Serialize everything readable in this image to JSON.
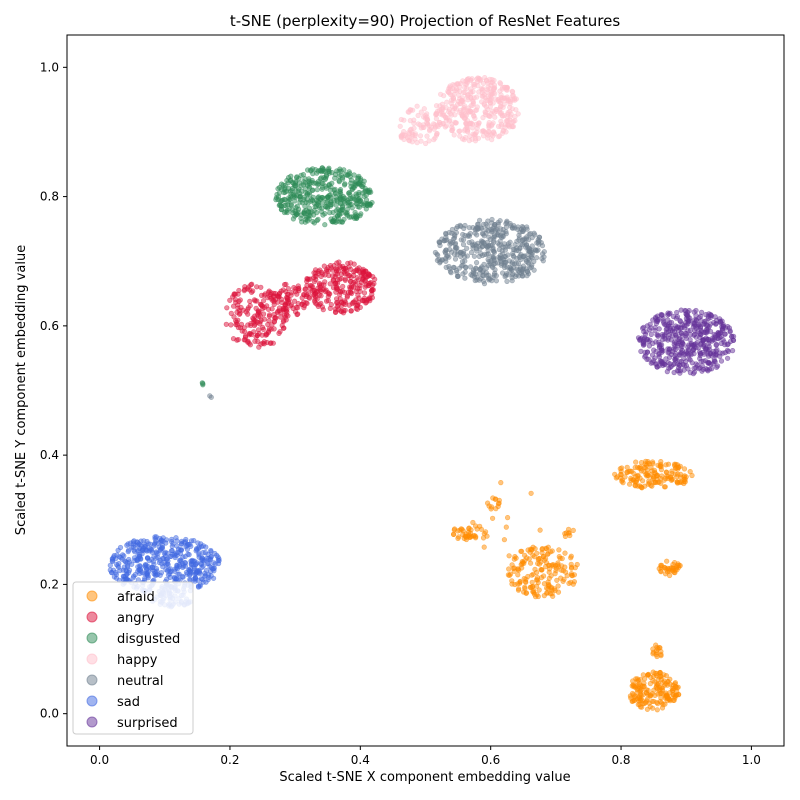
{
  "chart_data": {
    "type": "scatter",
    "title": "t-SNE (perplexity=90) Projection of ResNet Features",
    "xlabel": "Scaled t-SNE X component embedding value",
    "ylabel": "Scaled t-SNE Y component embedding value",
    "xlim": [
      -0.05,
      1.05
    ],
    "ylim": [
      -0.05,
      1.05
    ],
    "xticks": [
      "0.0",
      "0.2",
      "0.4",
      "0.6",
      "0.8",
      "1.0"
    ],
    "yticks": [
      "0.0",
      "0.2",
      "0.4",
      "0.6",
      "0.8",
      "1.0"
    ],
    "grid": false,
    "legend_position": "lower-left",
    "series": [
      {
        "name": "afraid",
        "color": "#ff8c00",
        "clusters": [
          {
            "cx": 0.57,
            "cy": 0.28,
            "rx": 0.03,
            "ry": 0.012,
            "n": 40
          },
          {
            "cx": 0.605,
            "cy": 0.325,
            "rx": 0.01,
            "ry": 0.01,
            "n": 12
          },
          {
            "cx": 0.68,
            "cy": 0.22,
            "rx": 0.055,
            "ry": 0.04,
            "n": 170
          },
          {
            "cx": 0.85,
            "cy": 0.37,
            "rx": 0.06,
            "ry": 0.022,
            "n": 150
          },
          {
            "cx": 0.875,
            "cy": 0.225,
            "rx": 0.018,
            "ry": 0.012,
            "n": 35
          },
          {
            "cx": 0.85,
            "cy": 0.035,
            "rx": 0.04,
            "ry": 0.03,
            "n": 170
          },
          {
            "cx": 0.855,
            "cy": 0.095,
            "rx": 0.008,
            "ry": 0.012,
            "n": 15
          },
          {
            "cx": 0.72,
            "cy": 0.28,
            "rx": 0.008,
            "ry": 0.008,
            "n": 8
          },
          {
            "cx": 0.64,
            "cy": 0.3,
            "rx": 0.08,
            "ry": 0.07,
            "n": 12
          }
        ]
      },
      {
        "name": "angry",
        "color": "#dc143c",
        "clusters": [
          {
            "cx": 0.24,
            "cy": 0.615,
            "rx": 0.05,
            "ry": 0.05,
            "n": 180
          },
          {
            "cx": 0.29,
            "cy": 0.64,
            "rx": 0.03,
            "ry": 0.025,
            "n": 70
          },
          {
            "cx": 0.37,
            "cy": 0.66,
            "rx": 0.055,
            "ry": 0.04,
            "n": 260
          }
        ]
      },
      {
        "name": "disgusted",
        "color": "#2e8b57",
        "clusters": [
          {
            "cx": 0.345,
            "cy": 0.8,
            "rx": 0.075,
            "ry": 0.045,
            "n": 420
          },
          {
            "cx": 0.158,
            "cy": 0.51,
            "rx": 0.002,
            "ry": 0.002,
            "n": 3
          }
        ]
      },
      {
        "name": "happy",
        "color": "#ffc0cb",
        "clusters": [
          {
            "cx": 0.58,
            "cy": 0.935,
            "rx": 0.065,
            "ry": 0.05,
            "n": 380
          },
          {
            "cx": 0.49,
            "cy": 0.91,
            "rx": 0.035,
            "ry": 0.03,
            "n": 80
          }
        ]
      },
      {
        "name": "neutral",
        "color": "#708090",
        "clusters": [
          {
            "cx": 0.6,
            "cy": 0.715,
            "rx": 0.085,
            "ry": 0.05,
            "n": 440
          },
          {
            "cx": 0.17,
            "cy": 0.49,
            "rx": 0.002,
            "ry": 0.002,
            "n": 2
          }
        ]
      },
      {
        "name": "sad",
        "color": "#4169e1",
        "clusters": [
          {
            "cx": 0.1,
            "cy": 0.23,
            "rx": 0.085,
            "ry": 0.045,
            "n": 460
          },
          {
            "cx": 0.11,
            "cy": 0.175,
            "rx": 0.03,
            "ry": 0.012,
            "n": 40
          }
        ]
      },
      {
        "name": "surprised",
        "color": "#663399",
        "clusters": [
          {
            "cx": 0.9,
            "cy": 0.575,
            "rx": 0.075,
            "ry": 0.05,
            "n": 460
          }
        ]
      }
    ]
  }
}
